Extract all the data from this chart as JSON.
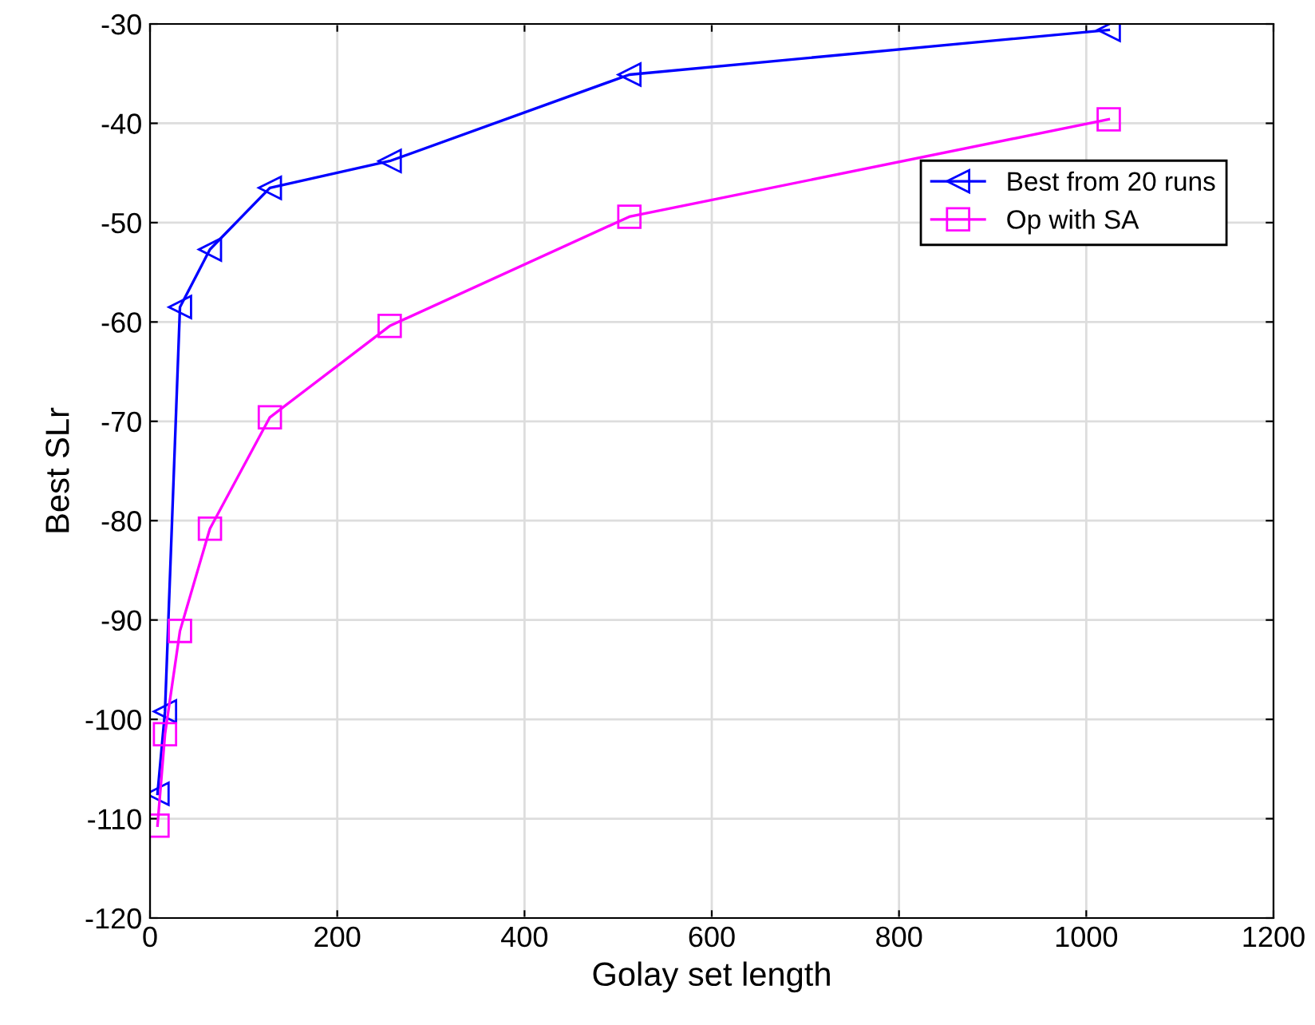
{
  "chart_data": {
    "type": "line",
    "xlabel": "Golay set length",
    "ylabel": "Best SLr",
    "xlim": [
      0,
      1200
    ],
    "ylim": [
      -120,
      -30
    ],
    "xticks": [
      0,
      200,
      400,
      600,
      800,
      1000,
      1200
    ],
    "yticks": [
      -120,
      -110,
      -100,
      -90,
      -80,
      -70,
      -60,
      -50,
      -40,
      -30
    ],
    "grid": true,
    "legend": "right",
    "line_style": "solid",
    "x": [
      8,
      16,
      32,
      64,
      128,
      256,
      512,
      1024
    ],
    "series": [
      {
        "name": "Best from 20 runs",
        "color": "#0000ff",
        "marker": "triangle",
        "values": [
          -107.5,
          -99.2,
          -58.5,
          -52.7,
          -46.5,
          -43.8,
          -35.1,
          -30.6
        ]
      },
      {
        "name": "Op with SA",
        "color": "#ff00ff",
        "marker": "square",
        "values": [
          -110.7,
          -101.5,
          -91.1,
          -80.8,
          -69.6,
          -60.4,
          -49.4,
          -39.6
        ]
      }
    ]
  }
}
